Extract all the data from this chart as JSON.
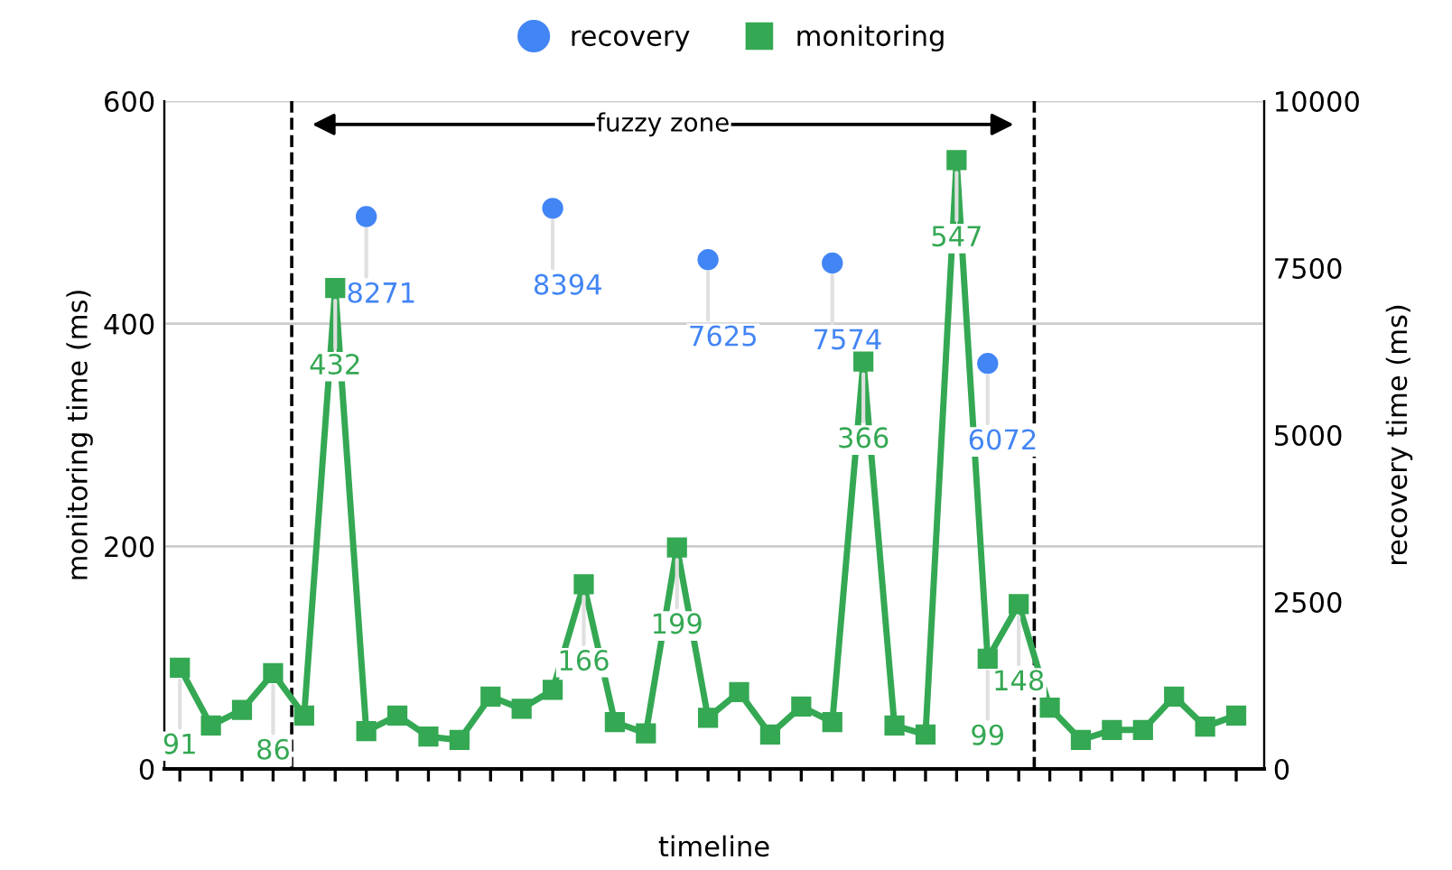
{
  "chart_data": {
    "type": "line",
    "xlabel": "timeline",
    "ylabel": "monitoring time (ms)",
    "y2label": "recovery time (ms)",
    "categories": [
      null,
      null,
      null,
      null,
      null,
      null,
      null,
      null,
      null,
      null,
      null,
      null,
      null,
      null,
      null,
      null,
      null,
      null,
      null,
      null,
      null,
      null,
      null,
      null,
      null,
      null,
      null,
      null,
      null,
      null,
      null,
      null,
      null,
      null,
      null
    ],
    "ylim": [
      0,
      600
    ],
    "yticks": [
      0,
      200,
      400,
      600
    ],
    "y2lim": [
      0,
      10000
    ],
    "y2ticks": [
      0,
      2500,
      5000,
      7500,
      10000
    ],
    "grid": "y",
    "legend": "top",
    "series": [
      {
        "name": "recovery",
        "type": "scatter",
        "axis": "y2",
        "marker": "circle",
        "color": "#4285f4",
        "values": [
          null,
          null,
          null,
          null,
          null,
          null,
          8271,
          null,
          null,
          null,
          null,
          null,
          8394,
          null,
          null,
          null,
          null,
          7625,
          null,
          null,
          null,
          7574,
          null,
          null,
          null,
          null,
          6072,
          null,
          null,
          null,
          null,
          null,
          null,
          null,
          null
        ],
        "value_labels": [
          null,
          null,
          null,
          null,
          null,
          null,
          "8271",
          null,
          null,
          null,
          null,
          null,
          "8394",
          null,
          null,
          null,
          null,
          "7625",
          null,
          null,
          null,
          "7574",
          null,
          null,
          null,
          null,
          "6072",
          null,
          null,
          null,
          null,
          null,
          null,
          null,
          null
        ]
      },
      {
        "name": "monitoring",
        "marker": "square",
        "line_style": "solid",
        "color": "#34a853",
        "values": [
          91,
          39,
          53,
          86,
          48,
          432,
          34,
          48,
          29,
          26,
          65,
          54,
          71,
          166,
          42,
          32,
          199,
          46,
          69,
          31,
          56,
          42,
          366,
          39,
          31,
          547,
          99,
          148,
          55,
          26,
          35,
          35,
          65,
          38,
          48
        ],
        "value_labels": [
          "91",
          null,
          null,
          "86",
          null,
          "432",
          null,
          null,
          null,
          null,
          null,
          null,
          null,
          "166",
          null,
          null,
          "199",
          null,
          null,
          null,
          null,
          null,
          "366",
          null,
          null,
          "547",
          "99",
          "148",
          null,
          null,
          null,
          null,
          null,
          null,
          null
        ]
      }
    ],
    "annotations": [
      "fuzzy zone"
    ]
  }
}
